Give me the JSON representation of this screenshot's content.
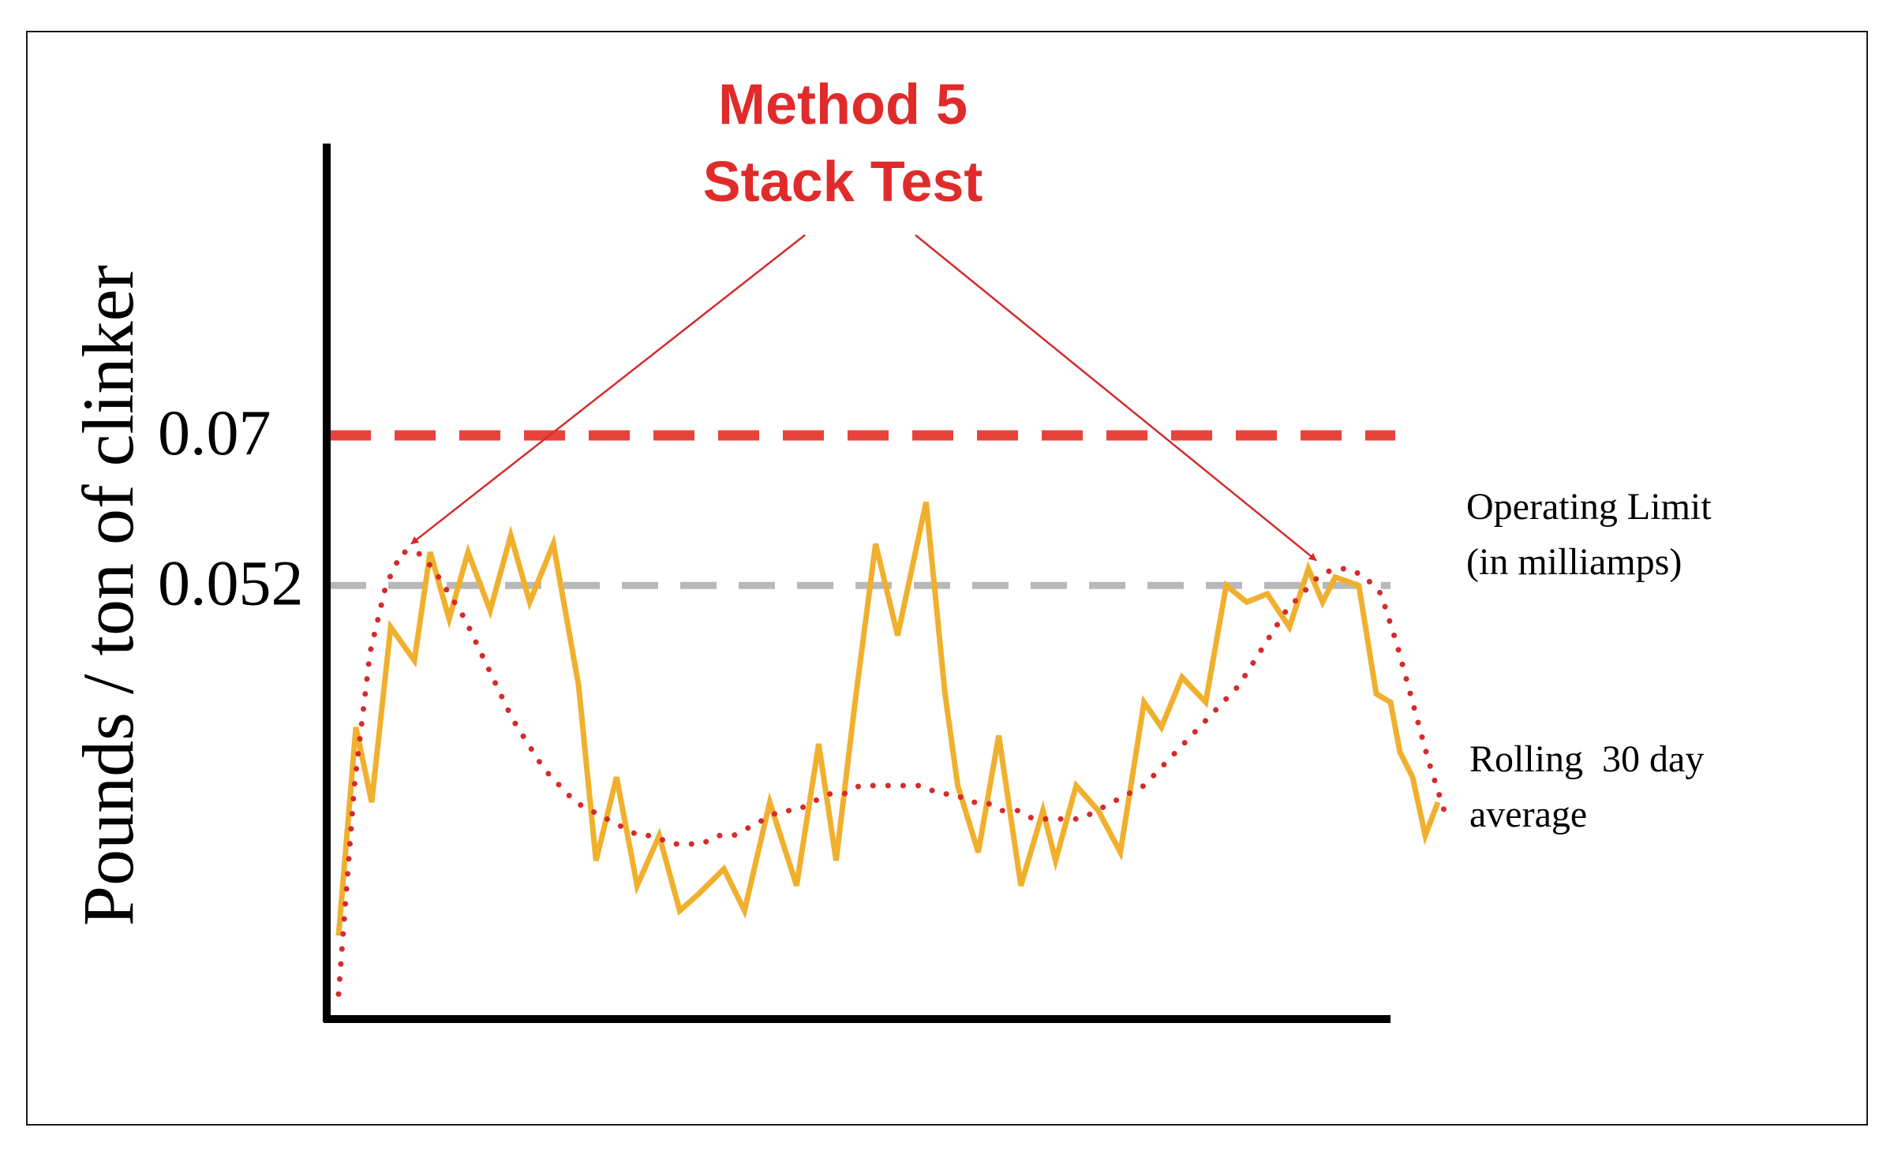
{
  "chart_data": {
    "type": "line",
    "title": [
      "Method 5",
      "Stack Test"
    ],
    "ylabel": "Pounds / ton of clinker",
    "xlabel": "",
    "ylim": [
      0,
      0.105
    ],
    "xlim": [
      0,
      70
    ],
    "ytick_labels": [
      "0.07",
      "0.052"
    ],
    "reference_lines": [
      {
        "value": 0.07,
        "color": "#e8433a",
        "style": "dashed"
      },
      {
        "value": 0.052,
        "color": "#b8b8b8",
        "style": "dashed"
      }
    ],
    "series": [
      {
        "color": "#f0b02e",
        "style": "solid",
        "label": [
          "Operating Limit",
          "(in milliamps)"
        ],
        "x": [
          0,
          1.1,
          2.1,
          3.3,
          4.8,
          5.8,
          7.0,
          8.2,
          9.6,
          10.9,
          12.1,
          13.6,
          15.2,
          16.3,
          17.6,
          18.9,
          20.3,
          21.6,
          22.8,
          24.4,
          25.7,
          27.3,
          29.0,
          30.4,
          31.5,
          32.7,
          34.0,
          35.4,
          37.2,
          38.4,
          39.2,
          40.5,
          41.8,
          43.2,
          44.6,
          45.4,
          46.7,
          48.1,
          49.5,
          51.0,
          52.1,
          53.4,
          54.9,
          56.2,
          57.5,
          58.8,
          60.2,
          61.4,
          62.3,
          63.1,
          64.6,
          65.7,
          66.6,
          67.2,
          68.0,
          68.8,
          69.6
        ],
        "y": [
          0.01,
          0.035,
          0.026,
          0.047,
          0.043,
          0.056,
          0.048,
          0.056,
          0.049,
          0.058,
          0.05,
          0.057,
          0.04,
          0.019,
          0.029,
          0.016,
          0.022,
          0.013,
          0.015,
          0.018,
          0.013,
          0.026,
          0.016,
          0.033,
          0.019,
          0.038,
          0.057,
          0.046,
          0.062,
          0.039,
          0.028,
          0.02,
          0.034,
          0.016,
          0.025,
          0.019,
          0.028,
          0.025,
          0.02,
          0.038,
          0.035,
          0.041,
          0.038,
          0.052,
          0.05,
          0.051,
          0.047,
          0.054,
          0.05,
          0.053,
          0.052,
          0.039,
          0.038,
          0.032,
          0.029,
          0.022,
          0.026
        ]
      },
      {
        "color": "#d62b2b",
        "style": "dotted",
        "label": [
          "Rolling  30 day",
          "average"
        ],
        "x": [
          0,
          1,
          2,
          3,
          4,
          5,
          6,
          7,
          8,
          9,
          10,
          11,
          12,
          13,
          14,
          15,
          16,
          17,
          18,
          19,
          20,
          21,
          22,
          23,
          24,
          25,
          26,
          27,
          28,
          29,
          30,
          31,
          32,
          33,
          34,
          35,
          36,
          37,
          38,
          39,
          40,
          41,
          42,
          43,
          44,
          45,
          46,
          47,
          48,
          49,
          50,
          51,
          52,
          53,
          54,
          55,
          56,
          57,
          58,
          59,
          60,
          61,
          62,
          63,
          64,
          65,
          66,
          67,
          68,
          69,
          70
        ],
        "y": [
          0.003,
          0.028,
          0.044,
          0.052,
          0.056,
          0.056,
          0.054,
          0.051,
          0.048,
          0.044,
          0.04,
          0.036,
          0.033,
          0.03,
          0.028,
          0.026,
          0.025,
          0.024,
          0.023,
          0.022,
          0.022,
          0.021,
          0.021,
          0.021,
          0.022,
          0.022,
          0.023,
          0.024,
          0.025,
          0.025,
          0.026,
          0.027,
          0.027,
          0.028,
          0.028,
          0.028,
          0.028,
          0.028,
          0.027,
          0.027,
          0.026,
          0.026,
          0.025,
          0.025,
          0.024,
          0.024,
          0.024,
          0.024,
          0.025,
          0.026,
          0.027,
          0.028,
          0.03,
          0.032,
          0.034,
          0.036,
          0.038,
          0.04,
          0.043,
          0.046,
          0.049,
          0.051,
          0.053,
          0.054,
          0.054,
          0.053,
          0.051,
          0.045,
          0.038,
          0.031,
          0.025
        ]
      }
    ],
    "annotations": [
      {
        "target_x": 4.6,
        "target_y": 0.057,
        "color": "#d62b2b"
      },
      {
        "target_x": 61.9,
        "target_y": 0.055,
        "color": "#d62b2b"
      }
    ],
    "grid": false,
    "legend": "right, inline labels"
  }
}
